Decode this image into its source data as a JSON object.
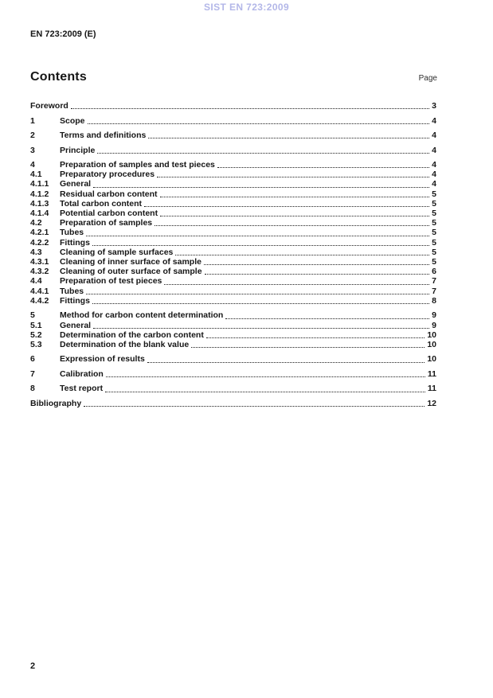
{
  "page": {
    "watermark": "SIST EN 723:2009",
    "doc_ref": "EN 723:2009 (E)",
    "footer_page_number": "2"
  },
  "contents_header": {
    "title": "Contents",
    "page_column_label": "Page"
  },
  "toc": {
    "entries": [
      {
        "num": "",
        "title": "Foreword",
        "page": "3",
        "level": "chapter"
      },
      {
        "num": "1",
        "title": "Scope",
        "page": "4",
        "level": "chapter"
      },
      {
        "num": "2",
        "title": "Terms and definitions",
        "page": "4",
        "level": "chapter"
      },
      {
        "num": "3",
        "title": "Principle",
        "page": "4",
        "level": "chapter"
      },
      {
        "num": "4",
        "title": "Preparation of samples and test pieces",
        "page": "4",
        "level": "chapter"
      },
      {
        "num": "4.1",
        "title": "Preparatory procedures",
        "page": "4",
        "level": "sub"
      },
      {
        "num": "4.1.1",
        "title": "General",
        "page": "4",
        "level": "sub"
      },
      {
        "num": "4.1.2",
        "title": "Residual carbon content",
        "page": "5",
        "level": "sub"
      },
      {
        "num": "4.1.3",
        "title": "Total carbon content",
        "page": "5",
        "level": "sub"
      },
      {
        "num": "4.1.4",
        "title": "Potential carbon content",
        "page": "5",
        "level": "sub"
      },
      {
        "num": "4.2",
        "title": "Preparation of samples",
        "page": "5",
        "level": "sub"
      },
      {
        "num": "4.2.1",
        "title": "Tubes",
        "page": "5",
        "level": "sub"
      },
      {
        "num": "4.2.2",
        "title": "Fittings",
        "page": "5",
        "level": "sub"
      },
      {
        "num": "4.3",
        "title": "Cleaning of sample surfaces",
        "page": "5",
        "level": "sub"
      },
      {
        "num": "4.3.1",
        "title": "Cleaning of inner surface of sample",
        "page": "5",
        "level": "sub"
      },
      {
        "num": "4.3.2",
        "title": "Cleaning of outer surface of sample",
        "page": "6",
        "level": "sub"
      },
      {
        "num": "4.4",
        "title": "Preparation of test pieces",
        "page": "7",
        "level": "sub"
      },
      {
        "num": "4.4.1",
        "title": "Tubes",
        "page": "7",
        "level": "sub"
      },
      {
        "num": "4.4.2",
        "title": "Fittings",
        "page": "8",
        "level": "sub"
      },
      {
        "num": "5",
        "title": "Method for carbon content determination",
        "page": "9",
        "level": "chapter"
      },
      {
        "num": "5.1",
        "title": "General",
        "page": "9",
        "level": "sub"
      },
      {
        "num": "5.2",
        "title": "Determination of the carbon content",
        "page": "10",
        "level": "sub"
      },
      {
        "num": "5.3",
        "title": "Determination of the blank value",
        "page": "10",
        "level": "sub"
      },
      {
        "num": "6",
        "title": "Expression of results",
        "page": "10",
        "level": "chapter"
      },
      {
        "num": "7",
        "title": "Calibration",
        "page": "11",
        "level": "chapter"
      },
      {
        "num": "8",
        "title": "Test report",
        "page": "11",
        "level": "chapter"
      },
      {
        "num": "",
        "title": "Bibliography",
        "page": "12",
        "level": "chapter"
      }
    ]
  },
  "colors": {
    "watermark_text": "#b3b7e8",
    "body_text": "#161616",
    "page_background": "#ffffff"
  }
}
